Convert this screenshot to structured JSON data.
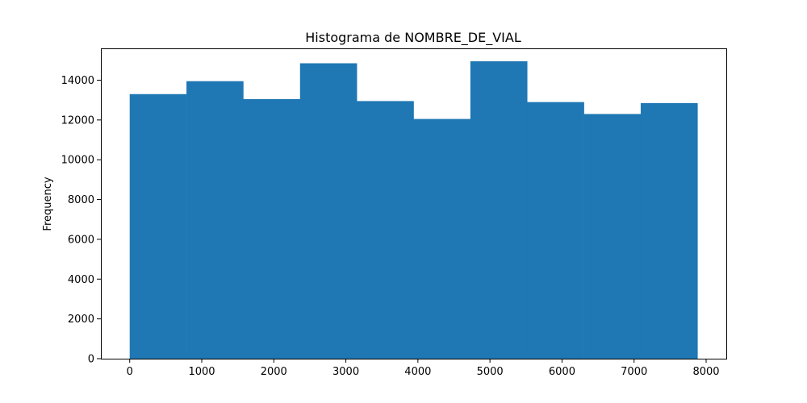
{
  "chart_data": {
    "type": "bar",
    "title": "Histograma de NOMBRE_DE_VIAL",
    "xlabel": "",
    "ylabel": "Frequency",
    "bar_color": "#1f77b4",
    "bin_edges": [
      0,
      788,
      1576,
      2364,
      3152,
      3940,
      4728,
      5516,
      6304,
      7092,
      7880
    ],
    "values": [
      13300,
      13950,
      13050,
      14850,
      12950,
      12050,
      14950,
      12900,
      12300,
      12850
    ],
    "xlim": [
      -400,
      8280
    ],
    "ylim": [
      0,
      15600
    ],
    "xticks": [
      0,
      1000,
      2000,
      3000,
      4000,
      5000,
      6000,
      7000,
      8000
    ],
    "yticks": [
      0,
      2000,
      4000,
      6000,
      8000,
      10000,
      12000,
      14000
    ],
    "grid": false
  }
}
